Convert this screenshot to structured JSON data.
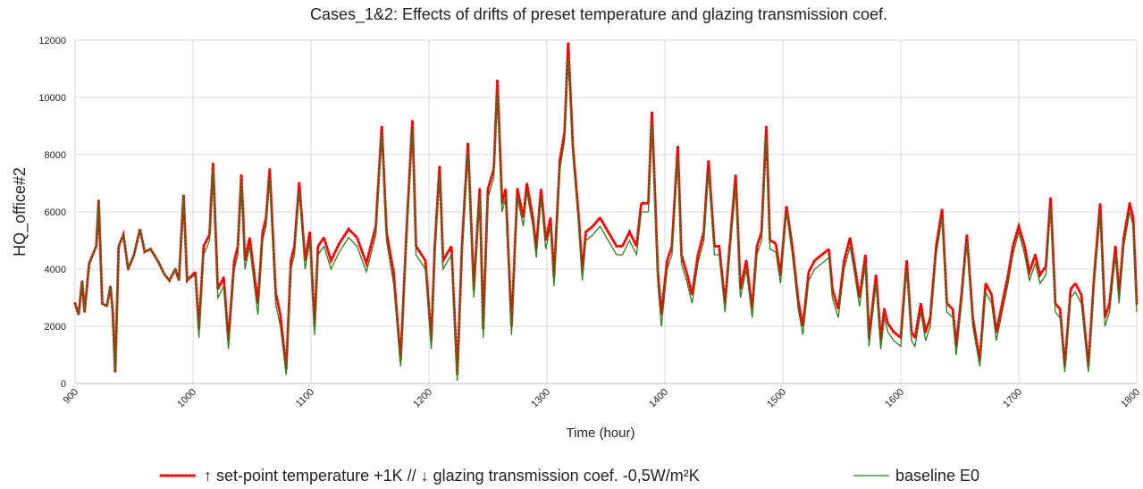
{
  "chart_data": {
    "type": "line",
    "title": "Cases_1&2: Effects of drifts  of preset temperature and glazing transmission coef.",
    "x_label": "Time (hour)",
    "y_label": "HQ_office#2",
    "x": [
      900,
      903,
      906,
      908,
      912,
      917,
      918,
      920,
      923,
      927,
      930,
      932,
      934,
      937,
      941,
      945,
      950,
      955,
      959,
      964,
      970,
      976,
      980,
      985,
      988,
      992,
      995,
      1002,
      1005,
      1009,
      1014,
      1017,
      1021,
      1026,
      1030,
      1035,
      1038,
      1041,
      1044,
      1048,
      1055,
      1059,
      1062,
      1065,
      1070,
      1074,
      1079,
      1083,
      1086,
      1090,
      1095,
      1099,
      1103,
      1106,
      1111,
      1117,
      1124,
      1132,
      1139,
      1147,
      1155,
      1160,
      1164,
      1170,
      1176,
      1181,
      1186,
      1189,
      1197,
      1202,
      1205,
      1209,
      1212,
      1219,
      1224,
      1228,
      1233,
      1238,
      1243,
      1246,
      1250,
      1255,
      1258,
      1262,
      1265,
      1270,
      1275,
      1280,
      1283,
      1288,
      1291,
      1295,
      1299,
      1303,
      1306,
      1311,
      1315,
      1318,
      1322,
      1327,
      1330,
      1333,
      1339,
      1345,
      1352,
      1359,
      1364,
      1370,
      1376,
      1380,
      1386,
      1389,
      1394,
      1397,
      1402,
      1406,
      1411,
      1414,
      1419,
      1423,
      1428,
      1433,
      1437,
      1442,
      1446,
      1451,
      1456,
      1460,
      1464,
      1469,
      1474,
      1478,
      1482,
      1486,
      1489,
      1494,
      1498,
      1503,
      1508,
      1513,
      1517,
      1522,
      1527,
      1533,
      1539,
      1542,
      1547,
      1552,
      1557,
      1561,
      1565,
      1570,
      1573,
      1579,
      1583,
      1586,
      1589,
      1594,
      1600,
      1605,
      1609,
      1612,
      1617,
      1621,
      1625,
      1630,
      1635,
      1639,
      1644,
      1647,
      1652,
      1656,
      1661,
      1667,
      1672,
      1677,
      1681,
      1686,
      1691,
      1695,
      1700,
      1705,
      1709,
      1714,
      1718,
      1723,
      1727,
      1731,
      1735,
      1739,
      1744,
      1748,
      1753,
      1759,
      1764,
      1769,
      1773,
      1777,
      1782,
      1785,
      1789,
      1794,
      1797,
      1800
    ],
    "series": [
      {
        "name": "↑ set-point temperature +1K // ↓ glazing transmission coef. -0,5W/m²K",
        "color": "#ff0000",
        "dash": "dotted",
        "values": [
          2800,
          2400,
          3600,
          2500,
          4200,
          4700,
          4800,
          6400,
          2800,
          2700,
          3400,
          2500,
          400,
          4800,
          5200,
          4000,
          4500,
          5400,
          4600,
          4700,
          4300,
          3800,
          3600,
          4000,
          3600,
          6600,
          3600,
          3900,
          1900,
          4800,
          5200,
          7700,
          3300,
          3700,
          1500,
          4300,
          4800,
          7300,
          4300,
          5100,
          2800,
          5300,
          5800,
          7500,
          3200,
          2400,
          500,
          4300,
          4800,
          7000,
          4300,
          5300,
          2000,
          4800,
          5100,
          4300,
          4900,
          5400,
          5100,
          4200,
          5500,
          9000,
          5300,
          3900,
          800,
          5300,
          9200,
          4800,
          4300,
          1500,
          4800,
          7600,
          4300,
          4800,
          300,
          4800,
          8400,
          3300,
          6800,
          1900,
          6800,
          7500,
          10600,
          6300,
          6800,
          2000,
          6800,
          5800,
          7000,
          5800,
          4700,
          6800,
          5000,
          5800,
          3700,
          7800,
          8800,
          11900,
          8300,
          5800,
          3900,
          5300,
          5500,
          5800,
          5300,
          4800,
          4800,
          5300,
          4800,
          6300,
          6300,
          9500,
          3900,
          2400,
          4300,
          4800,
          8300,
          4500,
          3800,
          3100,
          4500,
          5300,
          7800,
          4800,
          4800,
          2800,
          5300,
          7300,
          3300,
          4300,
          2600,
          4800,
          5300,
          9000,
          5000,
          4900,
          3800,
          6200,
          4800,
          2900,
          2000,
          3900,
          4300,
          4500,
          4700,
          3300,
          2600,
          4300,
          5100,
          4100,
          3000,
          4500,
          1600,
          3800,
          1500,
          2600,
          2100,
          1800,
          1600,
          4300,
          1800,
          1600,
          2800,
          1800,
          2300,
          4800,
          6100,
          2800,
          2600,
          1300,
          3300,
          5200,
          2300,
          800,
          3500,
          3100,
          1800,
          2800,
          3800,
          4800,
          5500,
          4800,
          3900,
          4500,
          3800,
          4100,
          6500,
          2800,
          2600,
          600,
          3300,
          3500,
          3100,
          600,
          3800,
          6300,
          2300,
          2800,
          4800,
          3100,
          5100,
          6300,
          5800,
          2800
        ]
      },
      {
        "name": "baseline E0",
        "color": "#2e7d1e",
        "dash": "solid",
        "values": [
          2800,
          2400,
          3600,
          2500,
          4200,
          4700,
          4800,
          6400,
          2800,
          2700,
          3400,
          2500,
          400,
          4800,
          5200,
          4000,
          4500,
          5400,
          4600,
          4700,
          4300,
          3800,
          3600,
          4000,
          3600,
          6600,
          3600,
          3800,
          1600,
          4500,
          5000,
          7500,
          3000,
          3400,
          1200,
          4000,
          4500,
          7100,
          4000,
          4800,
          2400,
          5000,
          5500,
          7200,
          2800,
          2000,
          300,
          4000,
          4500,
          6700,
          4000,
          5000,
          1700,
          4500,
          4800,
          4000,
          4600,
          5100,
          4800,
          3900,
          5200,
          8700,
          5000,
          3500,
          600,
          5000,
          8900,
          4500,
          4000,
          1200,
          4500,
          7300,
          4000,
          4500,
          100,
          4500,
          8100,
          3000,
          6500,
          1600,
          6500,
          7200,
          10200,
          6000,
          6500,
          1700,
          6500,
          5500,
          6700,
          5500,
          4400,
          6500,
          4700,
          5500,
          3400,
          7500,
          8500,
          11400,
          8000,
          5500,
          3600,
          5000,
          5200,
          5500,
          5000,
          4500,
          4500,
          5000,
          4500,
          6000,
          6000,
          9100,
          3500,
          2000,
          4000,
          4500,
          7900,
          4200,
          3500,
          2800,
          4200,
          5000,
          7400,
          4500,
          4500,
          2500,
          5000,
          6900,
          3000,
          4000,
          2300,
          4500,
          5000,
          8600,
          4700,
          4600,
          3500,
          6000,
          4500,
          2600,
          1700,
          3600,
          4000,
          4200,
          4400,
          3000,
          2300,
          4000,
          4800,
          3800,
          2700,
          4200,
          1300,
          3500,
          1200,
          2300,
          1800,
          1500,
          1300,
          4000,
          1500,
          1300,
          2500,
          1500,
          2000,
          4500,
          5800,
          2500,
          2300,
          1000,
          3000,
          5000,
          2000,
          600,
          3200,
          2800,
          1500,
          2500,
          3500,
          4500,
          5300,
          4500,
          3600,
          4200,
          3500,
          3800,
          6200,
          2500,
          2300,
          400,
          3000,
          3200,
          2800,
          400,
          3500,
          5900,
          2000,
          2500,
          4500,
          2800,
          4800,
          6000,
          5500,
          2500
        ]
      }
    ],
    "xlim": [
      900,
      1800
    ],
    "xticks": [
      900,
      1000,
      1100,
      1200,
      1300,
      1400,
      1500,
      1600,
      1700,
      1800
    ],
    "ylim": [
      0,
      12000
    ],
    "yticks": [
      0,
      2000,
      4000,
      6000,
      8000,
      10000,
      12000
    ],
    "grid": true,
    "legend": "bottom"
  }
}
